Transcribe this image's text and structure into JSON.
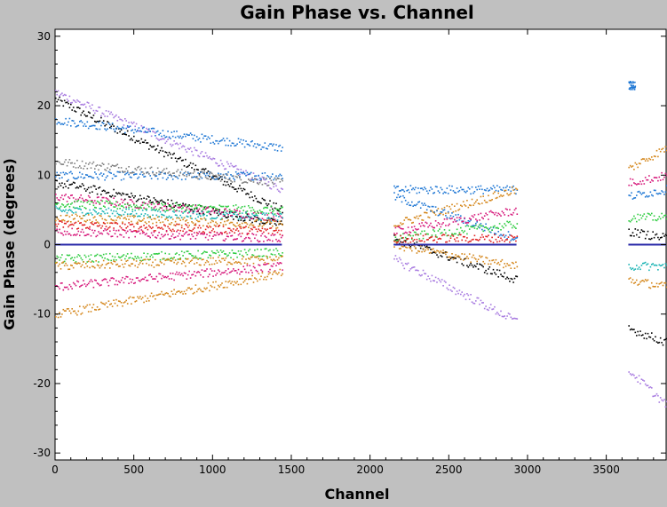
{
  "chart_data": {
    "type": "scatter",
    "title": "Gain Phase vs. Channel",
    "xlabel": "Channel",
    "ylabel": "Gain Phase (degrees)",
    "xlim": [
      0,
      3880
    ],
    "ylim": [
      -31,
      31
    ],
    "x_ticks": [
      0,
      500,
      1000,
      1500,
      2000,
      2500,
      3000,
      3500
    ],
    "y_ticks": [
      -30,
      -20,
      -10,
      0,
      10,
      20,
      30
    ],
    "x_tick_labels": [
      "0",
      "500",
      "1000",
      "1500",
      "2000",
      "2500",
      "3000",
      "3500"
    ],
    "y_tick_labels": [
      "-30",
      "-20",
      "-10",
      "0",
      "10",
      "20",
      "30"
    ],
    "grid": false,
    "legend": "none",
    "colors": {
      "page_background": "#c0c0c0",
      "plot_background": "#ffffff",
      "reference_line": "#2a2aa8",
      "palette": [
        "#000000",
        "#1f77d4",
        "#d4861a",
        "#2ecc40",
        "#d6177a",
        "#a87be0",
        "#ff7f0e",
        "#17b3b3",
        "#7f7f7f",
        "#e02020"
      ]
    },
    "segments": [
      {
        "x": [
          0,
          1440
        ]
      },
      {
        "x": [
          2150,
          2930
        ]
      },
      {
        "x": [
          3640,
          3880
        ]
      }
    ],
    "series": [
      {
        "color": "#000000",
        "values": [
          [
            0,
            21
          ],
          [
            1440,
            5
          ]
        ]
      },
      {
        "color": "#a87be0",
        "values": [
          [
            0,
            22
          ],
          [
            1440,
            8
          ]
        ]
      },
      {
        "color": "#1f77d4",
        "values": [
          [
            0,
            18
          ],
          [
            1440,
            14
          ]
        ]
      },
      {
        "color": "#1f77d4",
        "values": [
          [
            0,
            10
          ],
          [
            1440,
            10
          ]
        ]
      },
      {
        "color": "#7f7f7f",
        "values": [
          [
            0,
            12
          ],
          [
            1440,
            9
          ]
        ]
      },
      {
        "color": "#000000",
        "values": [
          [
            0,
            9
          ],
          [
            1440,
            3
          ]
        ]
      },
      {
        "color": "#d6177a",
        "values": [
          [
            0,
            7
          ],
          [
            1440,
            4
          ]
        ]
      },
      {
        "color": "#2ecc40",
        "values": [
          [
            0,
            6
          ],
          [
            1440,
            5
          ]
        ]
      },
      {
        "color": "#17b3b3",
        "values": [
          [
            0,
            5
          ],
          [
            1440,
            4
          ]
        ]
      },
      {
        "color": "#d4861a",
        "values": [
          [
            0,
            4
          ],
          [
            1440,
            3
          ]
        ]
      },
      {
        "color": "#e02020",
        "values": [
          [
            0,
            3
          ],
          [
            1440,
            2
          ]
        ]
      },
      {
        "color": "#d6177a",
        "values": [
          [
            0,
            2
          ],
          [
            1440,
            1
          ]
        ]
      },
      {
        "color": "#2ecc40",
        "values": [
          [
            0,
            -2
          ],
          [
            1440,
            -1
          ]
        ]
      },
      {
        "color": "#d4861a",
        "values": [
          [
            0,
            -3
          ],
          [
            1440,
            -2
          ]
        ]
      },
      {
        "color": "#d6177a",
        "values": [
          [
            0,
            -6
          ],
          [
            1440,
            -3
          ]
        ]
      },
      {
        "color": "#d4861a",
        "values": [
          [
            0,
            -10
          ],
          [
            1440,
            -4
          ]
        ]
      },
      {
        "color": "#1f77d4",
        "values": [
          [
            2150,
            8
          ],
          [
            2930,
            8
          ]
        ]
      },
      {
        "color": "#d4861a",
        "values": [
          [
            2150,
            3
          ],
          [
            2930,
            8
          ]
        ]
      },
      {
        "color": "#1f77d4",
        "values": [
          [
            2150,
            7
          ],
          [
            2930,
            1
          ]
        ]
      },
      {
        "color": "#000000",
        "values": [
          [
            2150,
            1
          ],
          [
            2930,
            -5
          ]
        ]
      },
      {
        "color": "#a87be0",
        "values": [
          [
            2150,
            -2
          ],
          [
            2930,
            -11
          ]
        ]
      },
      {
        "color": "#2ecc40",
        "values": [
          [
            2150,
            1
          ],
          [
            2930,
            3
          ]
        ]
      },
      {
        "color": "#d6177a",
        "values": [
          [
            2150,
            2
          ],
          [
            2930,
            5
          ]
        ]
      },
      {
        "color": "#d4861a",
        "values": [
          [
            2150,
            0
          ],
          [
            2930,
            -3
          ]
        ]
      },
      {
        "color": "#e02020",
        "values": [
          [
            2150,
            1
          ],
          [
            2930,
            1
          ]
        ]
      },
      {
        "color": "#d4861a",
        "values": [
          [
            3640,
            11
          ],
          [
            3880,
            14
          ]
        ]
      },
      {
        "color": "#d6177a",
        "values": [
          [
            3640,
            9
          ],
          [
            3880,
            10
          ]
        ]
      },
      {
        "color": "#1f77d4",
        "values": [
          [
            3640,
            7
          ],
          [
            3880,
            8
          ]
        ]
      },
      {
        "color": "#2ecc40",
        "values": [
          [
            3640,
            4
          ],
          [
            3880,
            4
          ]
        ]
      },
      {
        "color": "#000000",
        "values": [
          [
            3640,
            2
          ],
          [
            3880,
            1
          ]
        ]
      },
      {
        "color": "#17b3b3",
        "values": [
          [
            3640,
            -3
          ],
          [
            3880,
            -3
          ]
        ]
      },
      {
        "color": "#d4861a",
        "values": [
          [
            3640,
            -5
          ],
          [
            3880,
            -6
          ]
        ]
      },
      {
        "color": "#000000",
        "values": [
          [
            3640,
            -12
          ],
          [
            3880,
            -14
          ]
        ]
      },
      {
        "color": "#a87be0",
        "values": [
          [
            3640,
            -18
          ],
          [
            3880,
            -23
          ]
        ]
      },
      {
        "color": "#1f77d4",
        "values": [
          [
            3640,
            23
          ],
          [
            3680,
            23
          ]
        ]
      }
    ],
    "reference_line": {
      "y": 0,
      "x_ranges": [
        [
          0,
          1440
        ],
        [
          2150,
          2930
        ],
        [
          3640,
          3880
        ]
      ]
    }
  }
}
